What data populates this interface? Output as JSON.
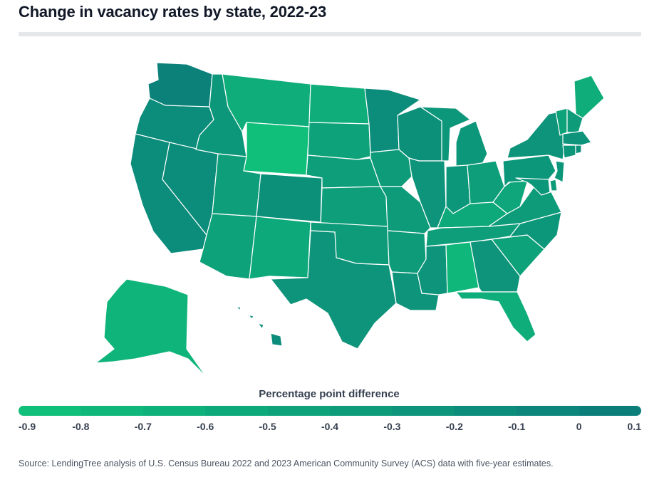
{
  "title": "Change in vacancy rates by state, 2022-23",
  "legend": {
    "title": "Percentage point difference",
    "ticks": [
      "-0.9",
      "-0.8",
      "-0.7",
      "-0.6",
      "-0.5",
      "-0.4",
      "-0.3",
      "-0.2",
      "-0.1",
      "0",
      "0.1"
    ],
    "color_low": "#10c37a",
    "color_high": "#0b7a7a"
  },
  "source": "Source: LendingTree analysis of U.S. Census Bureau 2022 and 2023 American Community Survey (ACS) data with five-year estimates.",
  "states": [
    {
      "id": "WA",
      "value": 0.0
    },
    {
      "id": "OR",
      "value": -0.15
    },
    {
      "id": "CA",
      "value": -0.15
    },
    {
      "id": "NV",
      "value": -0.15
    },
    {
      "id": "ID",
      "value": -0.3
    },
    {
      "id": "MT",
      "value": -0.6
    },
    {
      "id": "WY",
      "value": -0.85
    },
    {
      "id": "UT",
      "value": -0.4
    },
    {
      "id": "AZ",
      "value": -0.45
    },
    {
      "id": "CO",
      "value": -0.2
    },
    {
      "id": "NM",
      "value": -0.55
    },
    {
      "id": "ND",
      "value": -0.6
    },
    {
      "id": "SD",
      "value": -0.45
    },
    {
      "id": "NE",
      "value": -0.4
    },
    {
      "id": "KS",
      "value": -0.4
    },
    {
      "id": "OK",
      "value": -0.35
    },
    {
      "id": "TX",
      "value": -0.25
    },
    {
      "id": "MN",
      "value": -0.15
    },
    {
      "id": "IA",
      "value": -0.35
    },
    {
      "id": "MO",
      "value": -0.35
    },
    {
      "id": "AR",
      "value": -0.35
    },
    {
      "id": "LA",
      "value": -0.25
    },
    {
      "id": "WI",
      "value": -0.2
    },
    {
      "id": "IL",
      "value": -0.25
    },
    {
      "id": "MI",
      "value": -0.3
    },
    {
      "id": "IN",
      "value": -0.3
    },
    {
      "id": "OH",
      "value": -0.4
    },
    {
      "id": "KY",
      "value": -0.55
    },
    {
      "id": "TN",
      "value": -0.4
    },
    {
      "id": "MS",
      "value": -0.25
    },
    {
      "id": "AL",
      "value": -0.75
    },
    {
      "id": "GA",
      "value": -0.25
    },
    {
      "id": "FL",
      "value": -0.6
    },
    {
      "id": "SC",
      "value": -0.45
    },
    {
      "id": "NC",
      "value": -0.3
    },
    {
      "id": "VA",
      "value": -0.35
    },
    {
      "id": "WV",
      "value": -0.5
    },
    {
      "id": "PA",
      "value": -0.3
    },
    {
      "id": "NY",
      "value": -0.25
    },
    {
      "id": "ME",
      "value": -0.6
    },
    {
      "id": "VT",
      "value": -0.45
    },
    {
      "id": "NH",
      "value": -0.35
    },
    {
      "id": "MA",
      "value": -0.25
    },
    {
      "id": "CT",
      "value": -0.3
    },
    {
      "id": "RI",
      "value": -0.2
    },
    {
      "id": "NJ",
      "value": -0.3
    },
    {
      "id": "DE",
      "value": -0.35
    },
    {
      "id": "MD",
      "value": -0.3
    },
    {
      "id": "AK",
      "value": -0.7
    },
    {
      "id": "HI",
      "value": -0.15
    }
  ]
}
